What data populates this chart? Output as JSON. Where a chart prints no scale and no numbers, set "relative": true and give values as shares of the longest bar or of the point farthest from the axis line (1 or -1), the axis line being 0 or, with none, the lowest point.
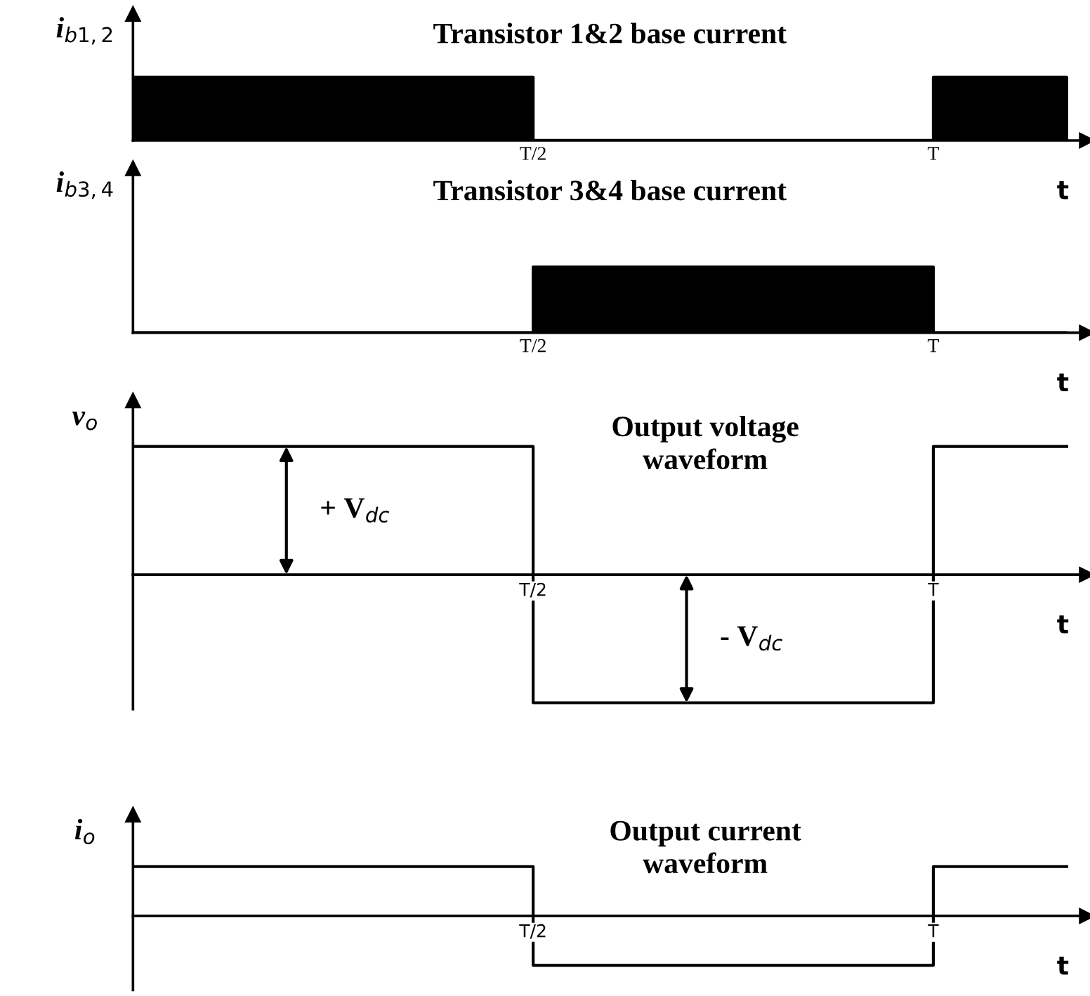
{
  "chart_data": [
    {
      "type": "area",
      "title": "Transistor 1&2 base current",
      "ylabel": "i$_{b1,2}$",
      "xlabel": "t",
      "relative": true,
      "categories": [
        null,
        null,
        null,
        "T/2",
        null,
        null,
        "T",
        null
      ],
      "series": [
        {
          "color": "#000000",
          "values": [
            1,
            1,
            1,
            0,
            0,
            0,
            1,
            1
          ]
        }
      ],
      "tick_labels": "x"
    },
    {
      "type": "area",
      "title": "Transistor 3&4 base current",
      "ylabel": "i$_{b3,4}$",
      "xlabel": "t",
      "relative": true,
      "categories": [
        null,
        null,
        null,
        "T/2",
        null,
        null,
        "T",
        null
      ],
      "series": [
        {
          "color": "#000000",
          "values": [
            0,
            0,
            0,
            1,
            1,
            1,
            0,
            0
          ]
        }
      ],
      "tick_labels": "x"
    },
    {
      "type": "step",
      "title": "Output voltage\nwaveform",
      "ylabel": "v$_{o}$",
      "xlabel": "t",
      "relative": true,
      "categories": [
        null,
        null,
        null,
        "T/2",
        null,
        null,
        "T",
        null
      ],
      "series": [
        {
          "color": "#000000",
          "values": [
            1,
            1,
            1,
            -1,
            -1,
            -1,
            1,
            1
          ]
        }
      ],
      "annotations": [
        "+ V$_{dc}$",
        "- V$_{dc}$"
      ],
      "tick_labels": "x"
    },
    {
      "type": "step",
      "title": "Output current\nwaveform",
      "ylabel": "i$_{o}$",
      "xlabel": "t",
      "relative": true,
      "categories": [
        null,
        null,
        null,
        "T/2",
        null,
        null,
        "T",
        null
      ],
      "series": [
        {
          "color": "#000000",
          "values": [
            1,
            1,
            1,
            -1,
            -1,
            -1,
            1,
            1
          ]
        }
      ],
      "tick_labels": "x"
    }
  ]
}
